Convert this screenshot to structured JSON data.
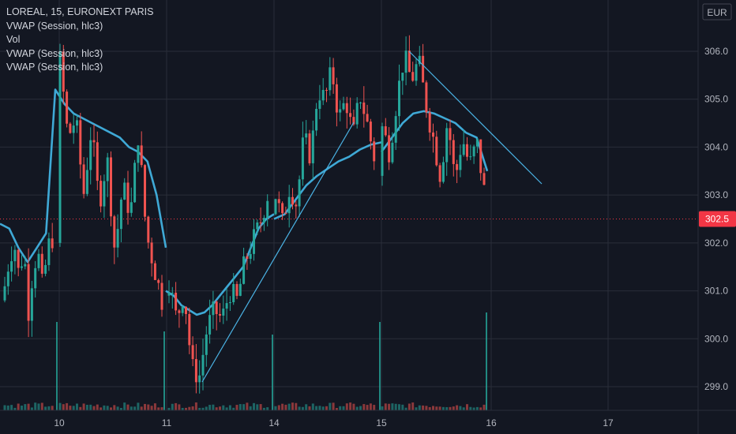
{
  "legend": {
    "symbol": "LOREAL, 15, EURONEXT PARIS",
    "indicators": [
      "VWAP (Session, hlc3)",
      "Vol",
      "VWAP (Session, hlc3)",
      "VWAP (Session, hlc3)"
    ]
  },
  "currency": "EUR",
  "colors": {
    "background": "#131722",
    "grid": "#2a2e39",
    "up": "#26a69a",
    "down": "#ef5350",
    "vwap": "#3fa9d6",
    "trendline": "#4bb4e6",
    "last_price": "#f23645"
  },
  "chart_data": {
    "type": "candlestick",
    "title": "LOREAL, 15, EURONEXT PARIS",
    "y_axis": {
      "ticks": [
        299.0,
        300.0,
        301.0,
        302.0,
        303.0,
        304.0,
        305.0,
        306.0
      ],
      "range": [
        298.6,
        307.1
      ]
    },
    "x_axis": {
      "tick_labels": [
        "10",
        "11",
        "14",
        "15",
        "16",
        "17"
      ]
    },
    "last_price": 302.5,
    "last_price_label": "302.5",
    "sessions": [
      {
        "label": "10",
        "open": 302.0,
        "path": [
          305.8,
          304.2,
          304.6,
          303.0,
          304.4,
          302.8,
          303.8,
          301.8,
          303.2,
          302.6,
          304.3,
          302.2,
          301.5,
          300.8
        ]
      },
      {
        "label": "11",
        "open": 300.9,
        "path": [
          301.2,
          300.4,
          301.0,
          299.4,
          299.2,
          300.2,
          300.6,
          300.4,
          301.0,
          300.8,
          301.6,
          302.0,
          302.4,
          303.0
        ]
      },
      {
        "label": "14",
        "open": 302.6,
        "path": [
          303.0,
          302.4,
          303.2,
          302.8,
          304.2,
          303.8,
          305.2,
          305.0,
          305.6,
          304.6,
          305.0,
          304.2,
          305.1,
          304.5,
          303.8
        ]
      },
      {
        "label": "15",
        "open": 303.4,
        "path": [
          304.4,
          303.9,
          305.0,
          305.9,
          305.4,
          305.8,
          304.9,
          304.2,
          303.4,
          304.6,
          303.3,
          304.2,
          303.6,
          304.1,
          303.1
        ]
      }
    ],
    "vwap_sessions": [
      [
        302.4,
        302.3,
        301.9,
        301.6,
        301.9,
        302.2,
        305.2,
        304.9,
        304.7,
        304.6,
        304.5,
        304.4,
        304.3,
        304.2,
        304.0,
        303.9,
        303.7,
        303.0,
        301.9
      ],
      [
        301.0,
        300.9,
        300.7,
        300.6,
        300.5,
        300.55,
        300.7,
        300.9,
        301.1,
        301.3,
        301.5,
        301.9,
        302.3,
        302.5,
        302.6
      ],
      [
        302.5,
        302.6,
        302.9,
        303.2,
        303.4,
        303.55,
        303.7,
        303.8,
        303.95,
        304.05,
        304.1
      ],
      [
        303.9,
        304.2,
        304.5,
        304.7,
        304.75,
        304.7,
        304.6,
        304.5,
        304.3,
        304.2,
        303.5
      ]
    ],
    "volumes_relative": [
      0.1,
      0.09,
      0.08,
      0.13,
      1.0,
      0.1,
      0.09,
      0.08,
      1.0,
      0.11,
      1.0,
      0.1,
      0.12,
      0.09,
      0.97,
      0.11,
      0.13,
      0.1,
      0.93
    ]
  }
}
